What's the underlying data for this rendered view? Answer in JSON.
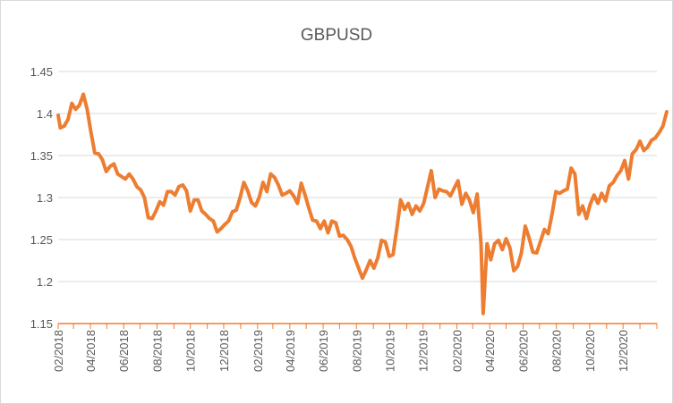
{
  "chart_data": {
    "type": "line",
    "title": "GBPUSD",
    "xlabel": "",
    "ylabel": "",
    "ylim": [
      1.15,
      1.45
    ],
    "yticks": [
      1.15,
      1.2,
      1.25,
      1.3,
      1.35,
      1.4,
      1.45
    ],
    "xtick_labels": [
      "02/2018",
      "04/2018",
      "06/2018",
      "08/2018",
      "10/2018",
      "12/2018",
      "02/2019",
      "04/2019",
      "06/2019",
      "08/2019",
      "10/2019",
      "12/2019",
      "02/2020",
      "04/2020",
      "06/2020",
      "08/2020",
      "10/2020",
      "12/2020"
    ],
    "grid": true,
    "legend": "none",
    "line_color": "#ed7d31",
    "x_start": "2018-02",
    "x_end": "2021-02",
    "series": [
      {
        "name": "",
        "points": [
          [
            "2018-02-01",
            1.398
          ],
          [
            "2018-02-05",
            1.383
          ],
          [
            "2018-02-12",
            1.385
          ],
          [
            "2018-02-19",
            1.393
          ],
          [
            "2018-02-26",
            1.412
          ],
          [
            "2018-03-05",
            1.405
          ],
          [
            "2018-03-12",
            1.41
          ],
          [
            "2018-03-19",
            1.423
          ],
          [
            "2018-03-26",
            1.405
          ],
          [
            "2018-04-02",
            1.378
          ],
          [
            "2018-04-09",
            1.353
          ],
          [
            "2018-04-16",
            1.352
          ],
          [
            "2018-04-23",
            1.345
          ],
          [
            "2018-04-30",
            1.331
          ],
          [
            "2018-05-07",
            1.337
          ],
          [
            "2018-05-14",
            1.34
          ],
          [
            "2018-05-21",
            1.328
          ],
          [
            "2018-05-28",
            1.325
          ],
          [
            "2018-06-04",
            1.322
          ],
          [
            "2018-06-11",
            1.328
          ],
          [
            "2018-06-18",
            1.322
          ],
          [
            "2018-06-25",
            1.313
          ],
          [
            "2018-07-02",
            1.309
          ],
          [
            "2018-07-09",
            1.3
          ],
          [
            "2018-07-16",
            1.276
          ],
          [
            "2018-07-23",
            1.275
          ],
          [
            "2018-07-30",
            1.284
          ],
          [
            "2018-08-06",
            1.295
          ],
          [
            "2018-08-13",
            1.291
          ],
          [
            "2018-08-20",
            1.307
          ],
          [
            "2018-08-27",
            1.307
          ],
          [
            "2018-09-03",
            1.303
          ],
          [
            "2018-09-10",
            1.313
          ],
          [
            "2018-09-17",
            1.315
          ],
          [
            "2018-09-24",
            1.308
          ],
          [
            "2018-10-01",
            1.284
          ],
          [
            "2018-10-08",
            1.297
          ],
          [
            "2018-10-15",
            1.297
          ],
          [
            "2018-10-22",
            1.284
          ],
          [
            "2018-10-29",
            1.28
          ],
          [
            "2018-11-05",
            1.275
          ],
          [
            "2018-11-12",
            1.272
          ],
          [
            "2018-11-19",
            1.259
          ],
          [
            "2018-11-26",
            1.263
          ],
          [
            "2018-12-03",
            1.268
          ],
          [
            "2018-12-10",
            1.272
          ],
          [
            "2018-12-17",
            1.283
          ],
          [
            "2018-12-24",
            1.285
          ],
          [
            "2018-12-31",
            1.3
          ],
          [
            "2019-01-07",
            1.318
          ],
          [
            "2019-01-14",
            1.308
          ],
          [
            "2019-01-21",
            1.294
          ],
          [
            "2019-01-28",
            1.29
          ],
          [
            "2019-02-04",
            1.3
          ],
          [
            "2019-02-11",
            1.318
          ],
          [
            "2019-02-18",
            1.307
          ],
          [
            "2019-02-25",
            1.328
          ],
          [
            "2019-03-04",
            1.324
          ],
          [
            "2019-03-11",
            1.315
          ],
          [
            "2019-03-18",
            1.303
          ],
          [
            "2019-03-25",
            1.305
          ],
          [
            "2019-04-01",
            1.308
          ],
          [
            "2019-04-08",
            1.302
          ],
          [
            "2019-04-15",
            1.293
          ],
          [
            "2019-04-22",
            1.317
          ],
          [
            "2019-04-29",
            1.303
          ],
          [
            "2019-05-06",
            1.287
          ],
          [
            "2019-05-13",
            1.273
          ],
          [
            "2019-05-20",
            1.272
          ],
          [
            "2019-05-27",
            1.263
          ],
          [
            "2019-06-03",
            1.272
          ],
          [
            "2019-06-10",
            1.258
          ],
          [
            "2019-06-17",
            1.272
          ],
          [
            "2019-06-24",
            1.27
          ],
          [
            "2019-07-01",
            1.254
          ],
          [
            "2019-07-08",
            1.255
          ],
          [
            "2019-07-15",
            1.25
          ],
          [
            "2019-07-22",
            1.242
          ],
          [
            "2019-07-29",
            1.228
          ],
          [
            "2019-08-05",
            1.216
          ],
          [
            "2019-08-12",
            1.204
          ],
          [
            "2019-08-19",
            1.214
          ],
          [
            "2019-08-26",
            1.225
          ],
          [
            "2019-09-02",
            1.216
          ],
          [
            "2019-09-09",
            1.228
          ],
          [
            "2019-09-16",
            1.249
          ],
          [
            "2019-09-23",
            1.247
          ],
          [
            "2019-09-30",
            1.23
          ],
          [
            "2019-10-07",
            1.232
          ],
          [
            "2019-10-14",
            1.263
          ],
          [
            "2019-10-21",
            1.297
          ],
          [
            "2019-10-28",
            1.286
          ],
          [
            "2019-11-04",
            1.293
          ],
          [
            "2019-11-11",
            1.28
          ],
          [
            "2019-11-18",
            1.29
          ],
          [
            "2019-11-25",
            1.284
          ],
          [
            "2019-12-02",
            1.293
          ],
          [
            "2019-12-09",
            1.312
          ],
          [
            "2019-12-16",
            1.332
          ],
          [
            "2019-12-23",
            1.3
          ],
          [
            "2019-12-30",
            1.31
          ],
          [
            "2020-01-06",
            1.308
          ],
          [
            "2020-01-13",
            1.307
          ],
          [
            "2020-01-20",
            1.302
          ],
          [
            "2020-01-27",
            1.311
          ],
          [
            "2020-02-03",
            1.32
          ],
          [
            "2020-02-10",
            1.292
          ],
          [
            "2020-02-17",
            1.305
          ],
          [
            "2020-02-24",
            1.297
          ],
          [
            "2020-03-02",
            1.282
          ],
          [
            "2020-03-09",
            1.304
          ],
          [
            "2020-03-16",
            1.245
          ],
          [
            "2020-03-20",
            1.162
          ],
          [
            "2020-03-27",
            1.245
          ],
          [
            "2020-04-03",
            1.226
          ],
          [
            "2020-04-10",
            1.245
          ],
          [
            "2020-04-17",
            1.249
          ],
          [
            "2020-04-24",
            1.238
          ],
          [
            "2020-05-01",
            1.251
          ],
          [
            "2020-05-08",
            1.24
          ],
          [
            "2020-05-15",
            1.213
          ],
          [
            "2020-05-22",
            1.218
          ],
          [
            "2020-05-29",
            1.234
          ],
          [
            "2020-06-05",
            1.266
          ],
          [
            "2020-06-12",
            1.252
          ],
          [
            "2020-06-19",
            1.235
          ],
          [
            "2020-06-26",
            1.234
          ],
          [
            "2020-07-03",
            1.248
          ],
          [
            "2020-07-10",
            1.262
          ],
          [
            "2020-07-17",
            1.257
          ],
          [
            "2020-07-24",
            1.28
          ],
          [
            "2020-07-31",
            1.307
          ],
          [
            "2020-08-07",
            1.305
          ],
          [
            "2020-08-14",
            1.308
          ],
          [
            "2020-08-21",
            1.31
          ],
          [
            "2020-08-28",
            1.335
          ],
          [
            "2020-09-04",
            1.328
          ],
          [
            "2020-09-11",
            1.28
          ],
          [
            "2020-09-18",
            1.29
          ],
          [
            "2020-09-25",
            1.275
          ],
          [
            "2020-10-02",
            1.292
          ],
          [
            "2020-10-09",
            1.303
          ],
          [
            "2020-10-16",
            1.293
          ],
          [
            "2020-10-23",
            1.305
          ],
          [
            "2020-10-30",
            1.296
          ],
          [
            "2020-11-06",
            1.314
          ],
          [
            "2020-11-13",
            1.318
          ],
          [
            "2020-11-20",
            1.326
          ],
          [
            "2020-11-27",
            1.332
          ],
          [
            "2020-12-04",
            1.344
          ],
          [
            "2020-12-11",
            1.322
          ],
          [
            "2020-12-18",
            1.352
          ],
          [
            "2020-12-25",
            1.357
          ],
          [
            "2021-01-01",
            1.367
          ],
          [
            "2021-01-08",
            1.356
          ],
          [
            "2021-01-15",
            1.36
          ],
          [
            "2021-01-22",
            1.368
          ],
          [
            "2021-01-29",
            1.371
          ],
          [
            "2021-02-05",
            1.377
          ],
          [
            "2021-02-12",
            1.385
          ],
          [
            "2021-02-19",
            1.402
          ]
        ]
      }
    ]
  }
}
